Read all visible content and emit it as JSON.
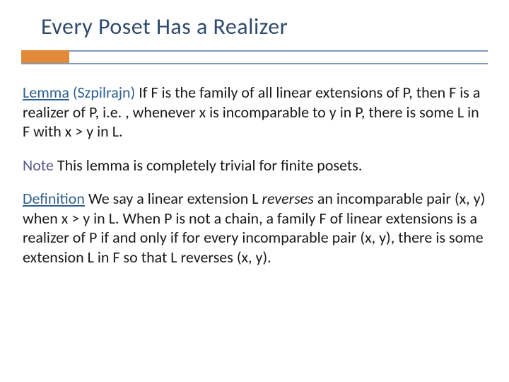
{
  "colors": {
    "title": "#2f4a6a",
    "rule": "#7a9bbd",
    "accent": "#e38a3a",
    "keyword": "#2f5f8f",
    "note_word": "#5a5a8a",
    "body_text": "#1a1a1a",
    "background": "#ffffff"
  },
  "typography": {
    "title_fontsize": 32,
    "body_fontsize": 22,
    "font_family": "Trebuchet MS / Gill Sans"
  },
  "layout": {
    "accent_block": {
      "width": 68,
      "height": 20
    },
    "rule_gap": 18
  },
  "title": "Every Poset Has a Realizer",
  "para1": {
    "lead": "Lemma",
    "attribution": " (Szpilrajn)",
    "rest": "   If  F  is the family of all linear extensions of  P, then  F  is a realizer of  P,  i.e. , whenever  x  is incomparable to  y  in P, there is some  L  in  F  with  x > y  in  L."
  },
  "para2": {
    "lead": "Note",
    "rest": "   This lemma is completely trivial for finite posets."
  },
  "para3": {
    "lead": "Definition",
    "rest_a": "   We say a linear extension  L  ",
    "emph": "reverses",
    "rest_b": " an incomparable pair  (x, y)  when  x > y  in L.   When  P  is not a chain, a family  F  of linear extensions is a realizer of  P  if and only if  for every incomparable pair (x, y), there is some extension  L in  F  so that  L reverses  (x, y)."
  }
}
